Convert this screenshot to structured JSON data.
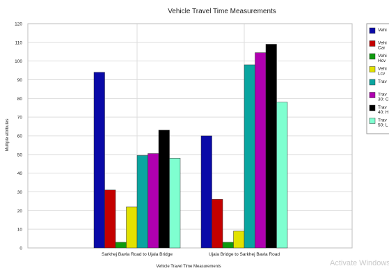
{
  "chart_data": {
    "type": "bar",
    "title": "Vehicle Travel Time Measurements",
    "xlabel": "Vehicle Travel Time Measurements",
    "ylabel": "Multiple attributes",
    "ylim": [
      0,
      120
    ],
    "yticks": [
      "0",
      "10",
      "20",
      "30",
      "40",
      "50",
      "60",
      "70",
      "80",
      "90",
      "100",
      "110",
      "120"
    ],
    "grid": true,
    "legend_position": "right",
    "categories": [
      "Sarkhej Bavla Road to Ujala Bridge",
      "Ujala Bridge to Sarkhej Bavla Road"
    ],
    "series": [
      {
        "name": "Vehi",
        "values": [
          94,
          60
        ],
        "color": "#0a0aa8"
      },
      {
        "name": "Vehi Car",
        "values": [
          31,
          26
        ],
        "color": "#c40000"
      },
      {
        "name": "Vehi Hcv",
        "values": [
          3,
          3
        ],
        "color": "#0e9a0e"
      },
      {
        "name": "Vehi Lcv",
        "values": [
          22,
          9
        ],
        "color": "#e2e200"
      },
      {
        "name": "Trav",
        "values": [
          49.5,
          98
        ],
        "color": "#0aa5a0"
      },
      {
        "name": "Trav 30: C",
        "values": [
          50.5,
          104.5
        ],
        "color": "#b000b0"
      },
      {
        "name": "Trav 40: H",
        "values": [
          63,
          109
        ],
        "color": "#000000"
      },
      {
        "name": "Trav 50: L",
        "values": [
          48,
          78
        ],
        "color": "#7fffd0"
      }
    ]
  },
  "watermark": "Activate Windows"
}
